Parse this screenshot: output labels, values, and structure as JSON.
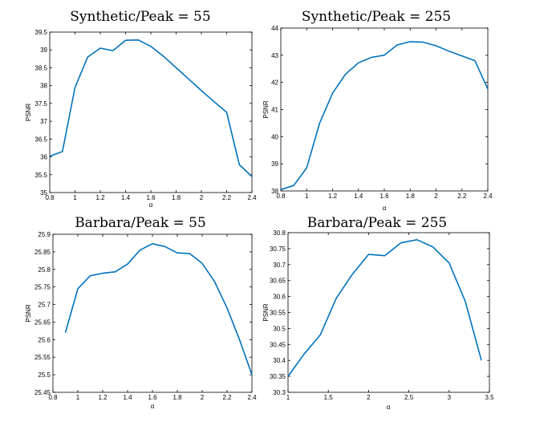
{
  "colors": {
    "line": "#0072BD",
    "axis": "#000000"
  },
  "chart_data": [
    {
      "type": "line",
      "title": "Synthetic/Peak = 55",
      "xlabel": "α",
      "ylabel": "PSNR",
      "xlim": [
        0.8,
        2.4
      ],
      "ylim": [
        35,
        39.5
      ],
      "xticks": [
        "0.8",
        "1",
        "1.2",
        "1.4",
        "1.6",
        "1.8",
        "2",
        "2.2",
        "2.4"
      ],
      "xtick_values": [
        0.8,
        1,
        1.2,
        1.4,
        1.6,
        1.8,
        2,
        2.2,
        2.4
      ],
      "yticks": [
        "35",
        "35.5",
        "36",
        "36.5",
        "37",
        "37.5",
        "38",
        "38.5",
        "39",
        "39.5"
      ],
      "ytick_values": [
        35,
        35.5,
        36,
        36.5,
        37,
        37.5,
        38,
        38.5,
        39,
        39.5
      ],
      "grid": false,
      "x": [
        0.8,
        0.9,
        1.0,
        1.1,
        1.2,
        1.3,
        1.4,
        1.5,
        1.6,
        1.7,
        1.8,
        1.9,
        2.0,
        2.1,
        2.2,
        2.3,
        2.4
      ],
      "y": [
        36.02,
        36.15,
        37.95,
        38.8,
        39.05,
        38.98,
        39.27,
        39.28,
        39.1,
        38.82,
        38.5,
        38.18,
        37.86,
        37.55,
        37.25,
        35.78,
        35.45
      ]
    },
    {
      "type": "line",
      "title": "Synthetic/Peak = 255",
      "xlabel": "α",
      "ylabel": "PSNR",
      "xlim": [
        0.8,
        2.4
      ],
      "ylim": [
        38,
        44
      ],
      "xticks": [
        "0.8",
        "1",
        "1.2",
        "1.4",
        "1.6",
        "1.8",
        "2",
        "2.2",
        "2.4"
      ],
      "xtick_values": [
        0.8,
        1,
        1.2,
        1.4,
        1.6,
        1.8,
        2,
        2.2,
        2.4
      ],
      "yticks": [
        "38",
        "39",
        "40",
        "41",
        "42",
        "43",
        "44"
      ],
      "ytick_values": [
        38,
        39,
        40,
        41,
        42,
        43,
        44
      ],
      "grid": false,
      "x": [
        0.8,
        0.9,
        1.0,
        1.1,
        1.2,
        1.3,
        1.4,
        1.5,
        1.6,
        1.7,
        1.8,
        1.9,
        2.0,
        2.1,
        2.2,
        2.3,
        2.4
      ],
      "y": [
        38.05,
        38.2,
        38.85,
        40.5,
        41.6,
        42.3,
        42.72,
        42.92,
        43.0,
        43.38,
        43.5,
        43.48,
        43.35,
        43.15,
        42.97,
        42.8,
        41.75
      ]
    },
    {
      "type": "line",
      "title": "Barbara/Peak = 55",
      "xlabel": "α",
      "ylabel": "PSNR",
      "xlim": [
        0.8,
        2.4
      ],
      "ylim": [
        25.45,
        25.9
      ],
      "xticks": [
        "0.8",
        "1",
        "1.2",
        "1.4",
        "1.6",
        "1.8",
        "2",
        "2.2",
        "2.4"
      ],
      "xtick_values": [
        0.8,
        1,
        1.2,
        1.4,
        1.6,
        1.8,
        2,
        2.2,
        2.4
      ],
      "yticks": [
        "25.45",
        "25.5",
        "25.55",
        "25.6",
        "25.65",
        "25.7",
        "25.75",
        "25.8",
        "25.85",
        "25.9"
      ],
      "ytick_values": [
        25.45,
        25.5,
        25.55,
        25.6,
        25.65,
        25.7,
        25.75,
        25.8,
        25.85,
        25.9
      ],
      "grid": false,
      "x": [
        0.9,
        1.0,
        1.1,
        1.2,
        1.3,
        1.4,
        1.5,
        1.6,
        1.7,
        1.8,
        1.9,
        2.0,
        2.1,
        2.2,
        2.3,
        2.4
      ],
      "y": [
        25.62,
        25.745,
        25.782,
        25.789,
        25.793,
        25.815,
        25.855,
        25.873,
        25.865,
        25.847,
        25.845,
        25.817,
        25.765,
        25.69,
        25.6,
        25.5
      ]
    },
    {
      "type": "line",
      "title": "Barbara/Peak = 255",
      "xlabel": "α",
      "ylabel": "PSNR",
      "xlim": [
        1,
        3.5
      ],
      "ylim": [
        30.3,
        30.8
      ],
      "xticks": [
        "1",
        "1.5",
        "2",
        "2.5",
        "3",
        "3.5"
      ],
      "xtick_values": [
        1,
        1.5,
        2,
        2.5,
        3,
        3.5
      ],
      "yticks": [
        "30.3",
        "30.35",
        "30.4",
        "30.45",
        "30.5",
        "30.55",
        "30.6",
        "30.65",
        "30.7",
        "30.75",
        "30.8"
      ],
      "ytick_values": [
        30.3,
        30.35,
        30.4,
        30.45,
        30.5,
        30.55,
        30.6,
        30.65,
        30.7,
        30.75,
        30.8
      ],
      "grid": false,
      "x": [
        1.0,
        1.2,
        1.4,
        1.6,
        1.8,
        2.0,
        2.2,
        2.4,
        2.6,
        2.8,
        3.0,
        3.2,
        3.4
      ],
      "y": [
        30.35,
        30.42,
        30.48,
        30.595,
        30.67,
        30.732,
        30.728,
        30.768,
        30.778,
        30.755,
        30.705,
        30.585,
        30.4
      ]
    }
  ]
}
